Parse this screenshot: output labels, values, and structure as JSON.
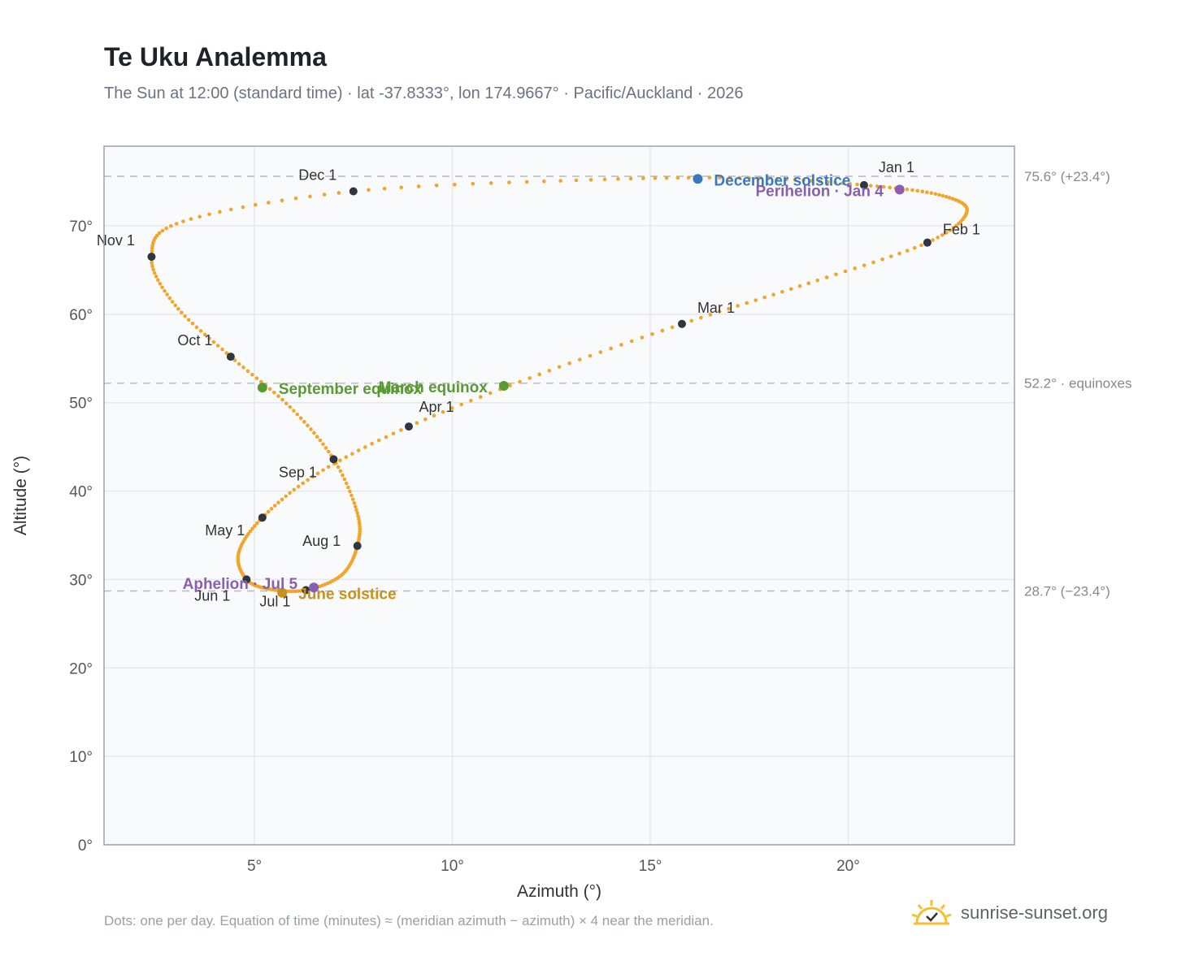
{
  "title": "Te Uku Analemma",
  "subtitle": "The Sun at 12:00 (standard time) · lat -37.8333°, lon 174.9667° · Pacific/Auckland · 2026",
  "footnote": "Dots: one per day. Equation of time (minutes) ≈ (meridian azimuth − azimuth) × 4 near the meridian.",
  "brand": {
    "name": "sunrise-sunset.org",
    "icon": "sun-logo-icon"
  },
  "colors": {
    "path": "#f2a52a",
    "month_marker": "#2f3640",
    "equinox": "#5a9a32",
    "december_solstice": "#3a78c0",
    "june_solstice": "#c8901c",
    "apsis": "#8a5fad",
    "reference_line": "#b8bec6",
    "plot_background": "#f8fafc",
    "grid": "#e5e9ee",
    "frame": "#9aa3ae"
  },
  "chart_data": {
    "type": "scatter",
    "title": "Te Uku Analemma",
    "xlabel": "Azimuth (°)",
    "ylabel": "Altitude (°)",
    "xlim": [
      1.2,
      24.2
    ],
    "ylim": [
      0,
      79
    ],
    "x_ticks": [
      5,
      10,
      15,
      20
    ],
    "x_tick_labels": [
      "5°",
      "10°",
      "15°",
      "20°"
    ],
    "y_ticks": [
      0,
      10,
      20,
      30,
      40,
      50,
      60,
      70
    ],
    "y_tick_labels": [
      "0°",
      "10°",
      "20°",
      "30°",
      "40°",
      "50°",
      "60°",
      "70°"
    ],
    "grid": true,
    "legend": "none",
    "reference_lines": [
      {
        "y": 75.6,
        "label": "75.6° (+23.4°)"
      },
      {
        "y": 52.2,
        "label": "52.2° · equinoxes"
      },
      {
        "y": 28.7,
        "label": "28.7° (−23.4°)"
      }
    ],
    "month_markers": [
      {
        "label": "Jan 1",
        "x": 20.4,
        "y": 74.6
      },
      {
        "label": "Feb 1",
        "x": 22.0,
        "y": 68.1
      },
      {
        "label": "Mar 1",
        "x": 15.8,
        "y": 58.9
      },
      {
        "label": "Apr 1",
        "x": 8.9,
        "y": 47.3
      },
      {
        "label": "May 1",
        "x": 5.2,
        "y": 37.0
      },
      {
        "label": "Jun 1",
        "x": 4.8,
        "y": 30.0
      },
      {
        "label": "Jul 1",
        "x": 6.3,
        "y": 28.8
      },
      {
        "label": "Aug 1",
        "x": 7.6,
        "y": 33.8
      },
      {
        "label": "Sep 1",
        "x": 7.0,
        "y": 43.6
      },
      {
        "label": "Oct 1",
        "x": 4.4,
        "y": 55.2
      },
      {
        "label": "Nov 1",
        "x": 2.4,
        "y": 66.5
      },
      {
        "label": "Dec 1",
        "x": 7.5,
        "y": 73.9
      }
    ],
    "events": [
      {
        "label": "December solstice",
        "x": 16.2,
        "y": 75.3,
        "kind": "december_solstice"
      },
      {
        "label": "Perihelion · Jan 4",
        "x": 21.3,
        "y": 74.1,
        "kind": "apsis"
      },
      {
        "label": "March equinox",
        "x": 11.3,
        "y": 51.9,
        "kind": "equinox"
      },
      {
        "label": "September equinox",
        "x": 5.2,
        "y": 51.7,
        "kind": "equinox"
      },
      {
        "label": "June solstice",
        "x": 5.7,
        "y": 28.5,
        "kind": "june_solstice"
      },
      {
        "label": "Aphelion · Jul 5",
        "x": 6.5,
        "y": 29.1,
        "kind": "apsis"
      }
    ],
    "path_knots": [
      [
        20.4,
        74.6
      ],
      [
        22.3,
        73.5
      ],
      [
        23.0,
        71.6
      ],
      [
        22.0,
        68.1
      ],
      [
        19.0,
        63.5
      ],
      [
        15.8,
        58.9
      ],
      [
        12.2,
        53.2
      ],
      [
        8.9,
        47.3
      ],
      [
        6.6,
        42.0
      ],
      [
        5.2,
        37.0
      ],
      [
        4.6,
        33.0
      ],
      [
        4.8,
        30.0
      ],
      [
        5.4,
        28.9
      ],
      [
        6.3,
        28.8
      ],
      [
        7.2,
        30.5
      ],
      [
        7.6,
        33.8
      ],
      [
        7.6,
        37.5
      ],
      [
        7.0,
        43.6
      ],
      [
        5.9,
        49.5
      ],
      [
        4.4,
        55.2
      ],
      [
        3.0,
        61.0
      ],
      [
        2.4,
        66.5
      ],
      [
        3.2,
        70.5
      ],
      [
        7.5,
        73.9
      ],
      [
        13.5,
        75.2
      ],
      [
        17.5,
        75.4
      ],
      [
        20.4,
        74.6
      ]
    ]
  }
}
